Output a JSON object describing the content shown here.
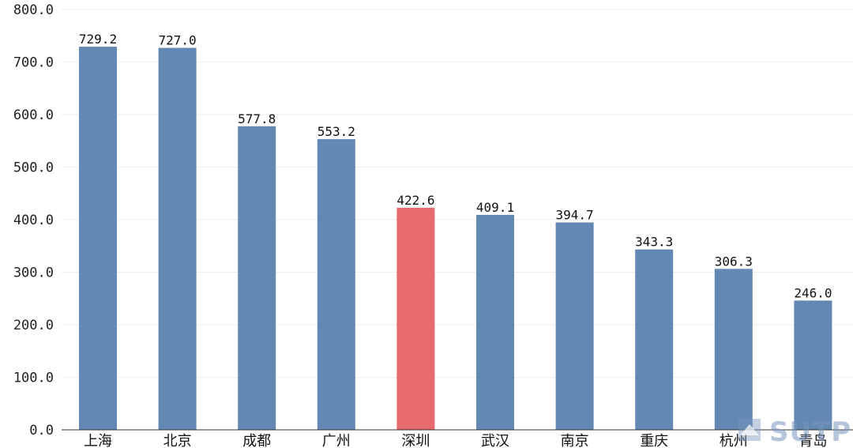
{
  "chart_data": {
    "type": "bar",
    "categories": [
      "上海",
      "北京",
      "成都",
      "广州",
      "深圳",
      "武汉",
      "南京",
      "重庆",
      "杭州",
      "青岛"
    ],
    "values": [
      729.2,
      727.0,
      577.8,
      553.2,
      422.6,
      409.1,
      394.7,
      343.3,
      306.3,
      246.0
    ],
    "value_labels": [
      "729.2",
      "727.0",
      "577.8",
      "553.2",
      "422.6",
      "409.1",
      "394.7",
      "343.3",
      "306.3",
      "246.0"
    ],
    "yticks": [
      "0.0",
      "100.0",
      "200.0",
      "300.0",
      "400.0",
      "500.0",
      "600.0",
      "700.0",
      "800.0"
    ],
    "ylim": [
      0,
      800
    ],
    "grid": true,
    "bar_color": "#6488b4",
    "highlight_color": "#e76a6e",
    "highlight_category": "深圳"
  },
  "watermark": {
    "text": "SUTPC",
    "color": "#7896be"
  }
}
